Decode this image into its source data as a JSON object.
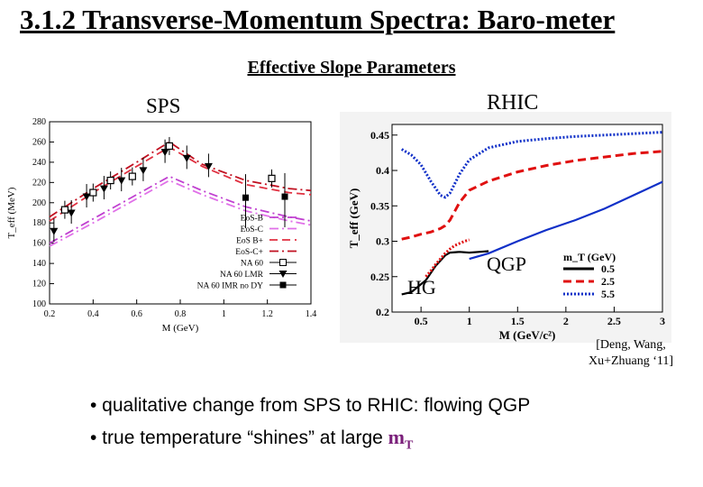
{
  "slide": {
    "title": "3.1.2 Transverse-Momentum Spectra: Baro-meter",
    "subtitle": "Effective Slope Parameters",
    "sps_label": "SPS",
    "rhic_label": "RHIC",
    "citation_line1": "[Deng, Wang,",
    "citation_line2": "Xu+Zhuang ‘11]",
    "bullet1": "• qualitative change from SPS to RHIC: flowing QGP",
    "bullet2_prefix": "• true temperature “shines” at large ",
    "bullet2_m": "m",
    "bullet2_sub": "T"
  },
  "chart_data": [
    {
      "type": "line",
      "title": "",
      "xlabel": "M (GeV)",
      "ylabel": "T_eff (MeV)",
      "xlim": [
        0.2,
        1.4
      ],
      "ylim": [
        100,
        280
      ],
      "xticks": [
        "0.2",
        "0.4",
        "0.6",
        "0.8",
        "1",
        "1.2",
        "1.4"
      ],
      "yticks": [
        "100",
        "120",
        "140",
        "160",
        "180",
        "200",
        "220",
        "240",
        "260",
        "280"
      ],
      "legend_position": "bottom-right",
      "series": [
        {
          "name": "EoS-B",
          "style": "dashdot",
          "color": "#c040d0",
          "x": [
            0.2,
            0.4,
            0.6,
            0.75,
            0.9,
            1.1,
            1.3,
            1.4
          ],
          "y": [
            160,
            184,
            208,
            226,
            212,
            196,
            186,
            182
          ]
        },
        {
          "name": "EoS-C",
          "style": "dashdot",
          "color": "#e070e8",
          "x": [
            0.2,
            0.4,
            0.6,
            0.75,
            0.9,
            1.1,
            1.3,
            1.4
          ],
          "y": [
            157,
            180,
            204,
            222,
            208,
            192,
            182,
            178
          ]
        },
        {
          "name": "EoS B+",
          "style": "dashed",
          "color": "#e03040",
          "x": [
            0.2,
            0.4,
            0.6,
            0.75,
            0.9,
            1.1,
            1.3,
            1.4
          ],
          "y": [
            182,
            210,
            236,
            255,
            236,
            218,
            210,
            208
          ]
        },
        {
          "name": "EoS-C+",
          "style": "dashdot",
          "color": "#c01020",
          "x": [
            0.2,
            0.4,
            0.6,
            0.75,
            0.9,
            1.1,
            1.3,
            1.4
          ],
          "y": [
            186,
            214,
            240,
            260,
            238,
            222,
            214,
            212
          ]
        },
        {
          "name": "NA 60",
          "style": "open-square",
          "color": "#000000",
          "x": [
            0.27,
            0.4,
            0.48,
            0.58,
            0.75,
            1.22
          ],
          "y": [
            193,
            210,
            222,
            226,
            256,
            224
          ]
        },
        {
          "name": "NA 60 LMR",
          "style": "filled-triangle",
          "color": "#000000",
          "x": [
            0.22,
            0.3,
            0.37,
            0.45,
            0.53,
            0.63,
            0.73,
            0.83,
            0.93
          ],
          "y": [
            172,
            190,
            206,
            214,
            222,
            232,
            250,
            244,
            236
          ]
        },
        {
          "name": "NA 60 IMR no DY",
          "style": "filled-square",
          "color": "#000000",
          "x": [
            1.1,
            1.28
          ],
          "y": [
            205,
            206
          ]
        }
      ]
    },
    {
      "type": "line",
      "title": "",
      "xlabel": "M (GeV/c²)",
      "ylabel": "T_eff (GeV)",
      "xlim": [
        0.2,
        3
      ],
      "ylim": [
        0.2,
        0.465
      ],
      "xticks": [
        "0.5",
        "1",
        "1.5",
        "2",
        "2.5",
        "3"
      ],
      "yticks": [
        "0.2",
        "0.25",
        "0.3",
        "0.35",
        "0.4",
        "0.45"
      ],
      "legend_title": "m_T (GeV)",
      "legend_position": "bottom-right",
      "annotations": [
        "QGP",
        "HG"
      ],
      "series": [
        {
          "name": "0.5",
          "style": "solid",
          "color": "#000000",
          "x": [
            0.3,
            0.4,
            0.55,
            0.65,
            0.75,
            0.8,
            0.9,
            1.0,
            1.1,
            1.2
          ],
          "y": [
            0.225,
            0.228,
            0.245,
            0.265,
            0.28,
            0.284,
            0.285,
            0.284,
            0.285,
            0.286
          ]
        },
        {
          "name": "2.5",
          "style": "dashed",
          "color": "#e01010",
          "x": [
            0.3,
            0.4,
            0.5,
            0.6,
            0.7,
            0.75,
            0.8,
            0.9,
            1.0,
            1.2,
            1.5,
            1.8,
            2.1,
            2.4,
            2.7,
            3.0
          ],
          "y": [
            0.303,
            0.306,
            0.31,
            0.313,
            0.318,
            0.322,
            0.33,
            0.355,
            0.372,
            0.385,
            0.398,
            0.407,
            0.414,
            0.419,
            0.424,
            0.427
          ]
        },
        {
          "name": "5.5",
          "style": "dotted",
          "color": "#1030c8",
          "x": [
            0.3,
            0.4,
            0.5,
            0.6,
            0.7,
            0.75,
            0.8,
            0.9,
            1.0,
            1.2,
            1.5,
            1.8,
            2.1,
            2.4,
            2.7,
            3.0
          ],
          "y": [
            0.43,
            0.422,
            0.408,
            0.385,
            0.365,
            0.362,
            0.368,
            0.395,
            0.415,
            0.432,
            0.441,
            0.445,
            0.448,
            0.45,
            0.452,
            0.454
          ]
        },
        {
          "name": "",
          "style": "dotted-red",
          "color": "#e01010",
          "x": [
            0.55,
            0.6,
            0.65,
            0.7,
            0.75,
            0.8,
            0.85,
            0.9,
            0.95,
            1.0
          ],
          "y": [
            0.25,
            0.258,
            0.267,
            0.275,
            0.283,
            0.289,
            0.294,
            0.297,
            0.3,
            0.302
          ]
        },
        {
          "name": "",
          "style": "solid-blue",
          "color": "#1030c8",
          "x": [
            1.0,
            1.2,
            1.5,
            1.8,
            2.1,
            2.4,
            2.7,
            3.0
          ],
          "y": [
            0.275,
            0.283,
            0.3,
            0.316,
            0.33,
            0.346,
            0.365,
            0.384
          ]
        }
      ]
    }
  ]
}
